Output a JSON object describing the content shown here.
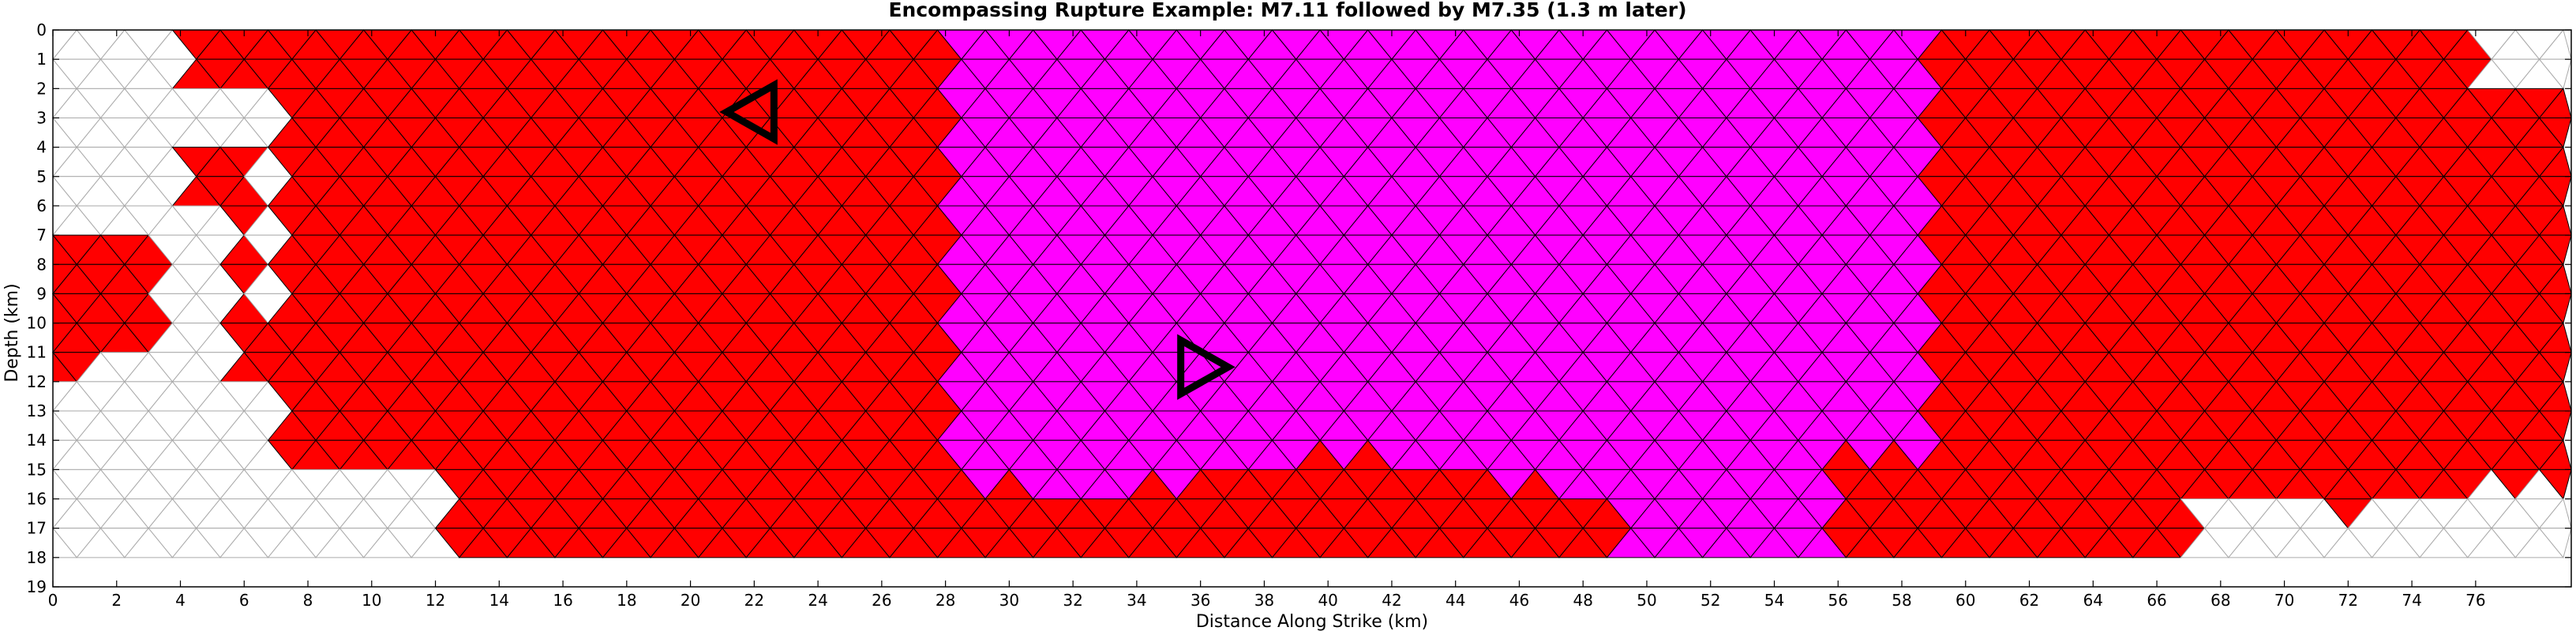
{
  "chart_data": {
    "type": "heatmap",
    "title": "Encompassing Rupture Example: M7.11 followed by M7.35 (1.3 m later)",
    "xlabel": "Distance Along Strike (km)",
    "ylabel": "Depth (km)",
    "xlim": [
      0,
      79
    ],
    "ylim": [
      19,
      0
    ],
    "y_inverted": true,
    "xticks": [
      0,
      2,
      4,
      6,
      8,
      10,
      12,
      14,
      16,
      18,
      20,
      22,
      24,
      26,
      28,
      30,
      32,
      34,
      36,
      38,
      40,
      42,
      44,
      46,
      48,
      50,
      52,
      54,
      56,
      58,
      60,
      62,
      64,
      66,
      68,
      70,
      72,
      74,
      76
    ],
    "yticks": [
      0,
      1,
      2,
      3,
      4,
      5,
      6,
      7,
      8,
      9,
      10,
      11,
      12,
      13,
      14,
      15,
      16,
      17,
      18,
      19
    ],
    "mesh": {
      "element": "triangle",
      "row_height_km": 2.0,
      "col_spacing_km": 1.5,
      "depth_extent_km": [
        0,
        18
      ]
    },
    "ruptures": [
      {
        "name": "M7.11",
        "magnitude": 7.11,
        "color": "#ff0000",
        "region": {
          "x": [
            0,
            79
          ],
          "depth": [
            0,
            18
          ]
        },
        "hypocenter": {
          "x_km": 22.0,
          "depth_km": 2.8,
          "marker": "triangle-left"
        }
      },
      {
        "name": "M7.35",
        "magnitude": 7.35,
        "color": "#ff00ff",
        "region": {
          "x": [
            28.2,
            59.0
          ],
          "depth": [
            0,
            18
          ]
        },
        "hypocenter": {
          "x_km": 36.0,
          "depth_km": 11.5,
          "marker": "triangle-right"
        }
      }
    ],
    "delay_minutes": 1.3,
    "unruptured_color": "#ffffff",
    "mesh_line_color": "#000000",
    "unruptured_line_color": "#aaaaaa"
  }
}
